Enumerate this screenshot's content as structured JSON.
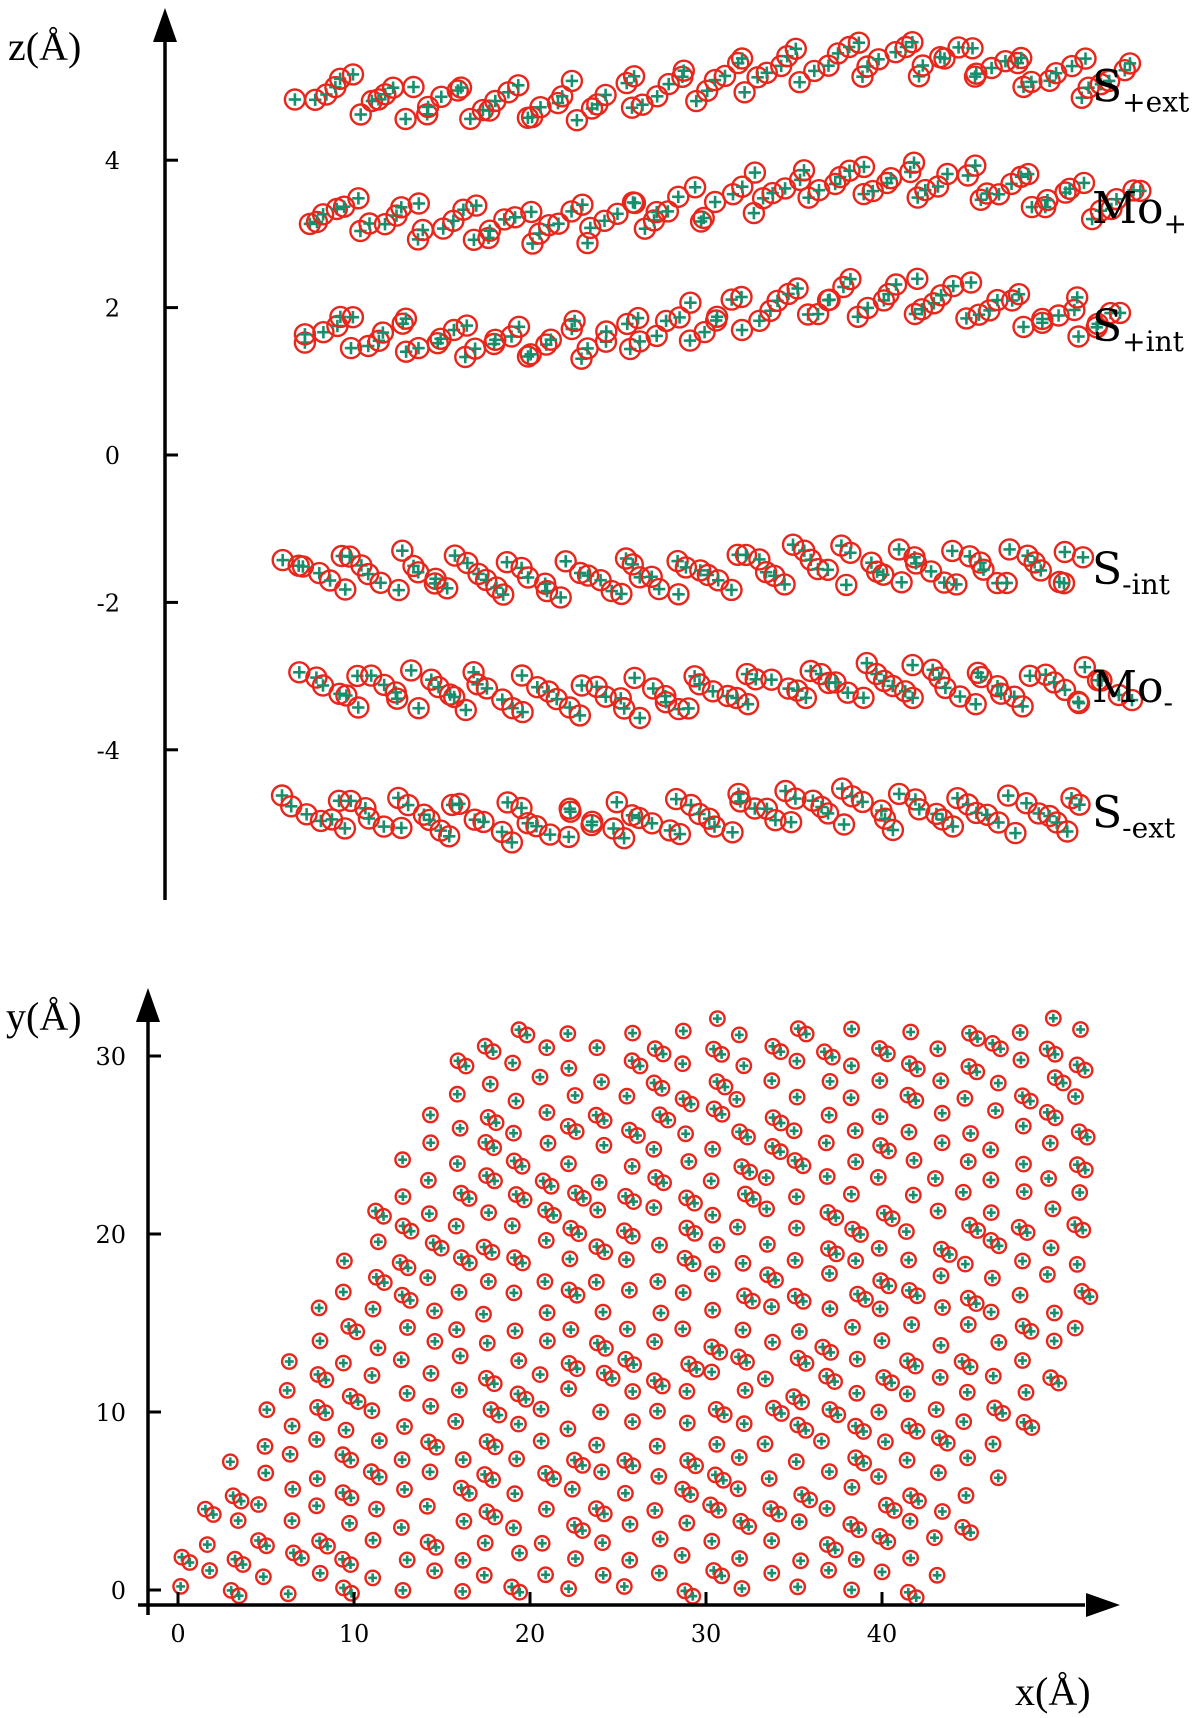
{
  "chart_data": [
    {
      "type": "scatter",
      "title": "",
      "ylabel": "z(Å)",
      "y_ticks": [
        "-4",
        "-2",
        "0",
        "2",
        "4"
      ],
      "ylim": [
        -5.9,
        6.2
      ],
      "xlim": [
        0,
        50
      ],
      "marker_colors": {
        "circle": "#e8261b",
        "plus": "#178f6d"
      },
      "layers": [
        {
          "label": "S",
          "sub": "+ext",
          "z_mean": 5.0,
          "x_range": [
            6,
            48.5
          ]
        },
        {
          "label": "Mo",
          "sub": "+",
          "z_mean": 3.35,
          "x_range": [
            6.3,
            49.3
          ]
        },
        {
          "label": "S",
          "sub": "+int",
          "z_mean": 1.75,
          "x_range": [
            6,
            48.5
          ]
        },
        {
          "label": "S",
          "sub": "-int",
          "z_mean": -1.55,
          "x_range": [
            5.3,
            46
          ]
        },
        {
          "label": "Mo",
          "sub": "-",
          "z_mean": -3.15,
          "x_range": [
            6.2,
            49
          ]
        },
        {
          "label": "S",
          "sub": "-ext",
          "z_mean": -4.85,
          "x_range": [
            5.3,
            46
          ]
        }
      ]
    },
    {
      "type": "scatter",
      "title": "",
      "xlabel": "x(Å)",
      "ylabel": "y(Å)",
      "x_ticks": [
        "0",
        "10",
        "20",
        "30",
        "40"
      ],
      "y_ticks": [
        "0",
        "10",
        "20",
        "30"
      ],
      "xlim": [
        -1.8,
        53
      ],
      "ylim": [
        -1.3,
        33.2
      ],
      "marker_colors": {
        "circle": "#e8261b",
        "plus": "#178f6d"
      },
      "lattice": {
        "a1": [
          3.2,
          0
        ],
        "a2": [
          1.6,
          2.77
        ],
        "n1": 14,
        "n2": 12
      },
      "extent": {
        "x": [
          0,
          51
        ],
        "y": [
          0,
          32
        ]
      }
    }
  ]
}
